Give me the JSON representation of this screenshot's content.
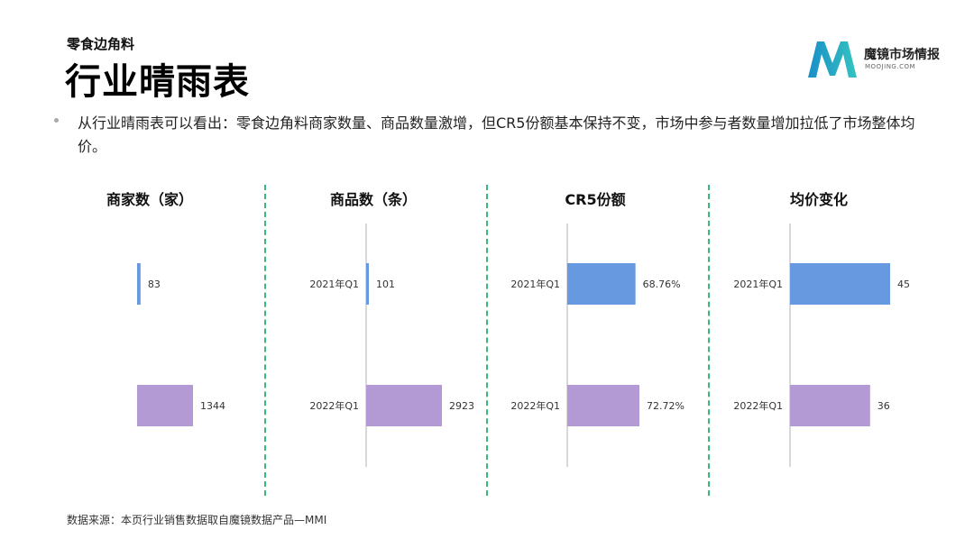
{
  "header": {
    "subtitle": "零食边角料",
    "title": "行业晴雨表"
  },
  "logo": {
    "name": "魔镜市场情报",
    "sub": "MOOJING.COM",
    "colors": [
      "#1a8fc7",
      "#34c3c0"
    ]
  },
  "summary": "从行业晴雨表可以看出：零食边角料商家数量、商品数量激增，但CR5份额基本保持不变，市场中参与者数量增加拉低了市场整体均价。",
  "source": "数据来源：本页行业销售数据取自魔镜数据产品—MMI",
  "colors": {
    "q2021": "#6699e0",
    "q2022": "#b39ad4",
    "divider": "#3cb97a",
    "axis": "#cccccc"
  },
  "chart_data": [
    {
      "type": "bar",
      "orientation": "horizontal",
      "title": "商家数（家）",
      "categories": [
        "",
        ""
      ],
      "values": [
        83,
        1344
      ],
      "labels": [
        "83",
        "1344"
      ]
    },
    {
      "type": "bar",
      "orientation": "horizontal",
      "title": "商品数（条）",
      "categories": [
        "2021年Q1",
        "2022年Q1"
      ],
      "values": [
        101,
        2923
      ],
      "labels": [
        "101",
        "2923"
      ]
    },
    {
      "type": "bar",
      "orientation": "horizontal",
      "title": "CR5份额",
      "categories": [
        "2021年Q1",
        "2022年Q1"
      ],
      "values": [
        68.76,
        72.72
      ],
      "labels": [
        "68.76%",
        "72.72%"
      ]
    },
    {
      "type": "bar",
      "orientation": "horizontal",
      "title": "均价变化",
      "categories": [
        "2021年Q1",
        "2022年Q1"
      ],
      "values": [
        45,
        36
      ],
      "labels": [
        "45",
        "36"
      ]
    }
  ]
}
